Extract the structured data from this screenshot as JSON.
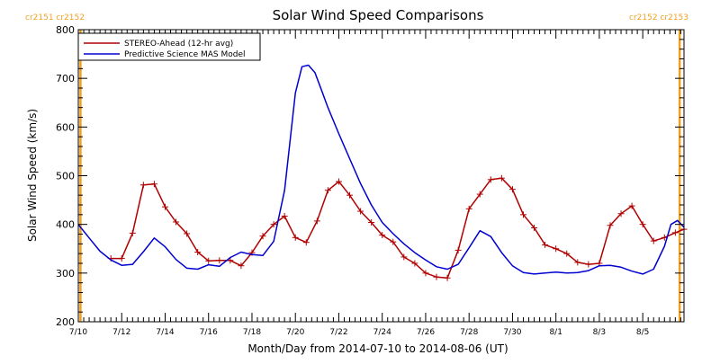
{
  "chart_data": {
    "type": "line",
    "title": "Solar Wind Speed Comparisons",
    "xlabel": "Month/Day from 2014-07-10 to 2014-08-06 (UT)",
    "ylabel": "Solar Wind Speed (km/s)",
    "x_units": "days since 2014-07-10 00:00 UT",
    "xlim": [
      0,
      27.9
    ],
    "ylim": [
      200,
      800
    ],
    "y_ticks": [
      200,
      300,
      400,
      500,
      600,
      700,
      800
    ],
    "x_ticks": [
      {
        "x": 0,
        "label": "7/10"
      },
      {
        "x": 2,
        "label": "7/12"
      },
      {
        "x": 4,
        "label": "7/14"
      },
      {
        "x": 6,
        "label": "7/16"
      },
      {
        "x": 8,
        "label": "7/18"
      },
      {
        "x": 10,
        "label": "7/20"
      },
      {
        "x": 12,
        "label": "7/22"
      },
      {
        "x": 14,
        "label": "7/24"
      },
      {
        "x": 16,
        "label": "7/26"
      },
      {
        "x": 18,
        "label": "7/28"
      },
      {
        "x": 20,
        "label": "7/30"
      },
      {
        "x": 22,
        "label": "8/1"
      },
      {
        "x": 24,
        "label": "8/3"
      },
      {
        "x": 26,
        "label": "8/5"
      }
    ],
    "legend_placement": "top-left",
    "rotation_markers": [
      {
        "x": 0.1,
        "labels": [
          "cr2151",
          "cr2152"
        ],
        "color": "#f2a020"
      },
      {
        "x": 27.7,
        "labels": [
          "cr2152",
          "cr2153"
        ],
        "color": "#f2a020"
      }
    ],
    "series": [
      {
        "name": "STEREO-Ahead (12-hr avg)",
        "color": "#b00000",
        "marker": "plus",
        "x": [
          1.5,
          2.0,
          2.5,
          3.0,
          3.5,
          4.0,
          4.5,
          5.0,
          5.5,
          6.0,
          6.5,
          7.0,
          7.5,
          8.0,
          8.5,
          9.0,
          9.5,
          10.0,
          10.5,
          11.0,
          11.5,
          12.0,
          12.5,
          13.0,
          13.5,
          14.0,
          14.5,
          15.0,
          15.5,
          16.0,
          16.5,
          17.0,
          17.5,
          18.0,
          18.5,
          19.0,
          19.5,
          20.0,
          20.5,
          21.0,
          21.5,
          22.0,
          22.5,
          23.0,
          23.5,
          24.0,
          24.5,
          25.0,
          25.5,
          26.0,
          26.5,
          27.0,
          27.5,
          27.9
        ],
        "y": [
          330,
          330,
          382,
          481,
          483,
          436,
          405,
          381,
          343,
          325,
          326,
          326,
          315,
          342,
          376,
          400,
          417,
          373,
          363,
          407,
          470,
          488,
          460,
          427,
          404,
          378,
          364,
          333,
          320,
          300,
          292,
          290,
          347,
          432,
          462,
          492,
          495,
          472,
          420,
          393,
          358,
          350,
          340,
          322,
          318,
          320,
          398,
          422,
          438,
          400,
          366,
          373,
          383,
          390
        ]
      },
      {
        "name": "Predictive Science MAS Model",
        "color": "#0000d0",
        "marker": "none",
        "x": [
          0.0,
          0.5,
          1.0,
          1.5,
          2.0,
          2.5,
          3.0,
          3.5,
          4.0,
          4.5,
          5.0,
          5.5,
          6.0,
          6.5,
          7.0,
          7.5,
          8.0,
          8.5,
          9.0,
          9.5,
          10.0,
          10.3,
          10.6,
          10.9,
          11.2,
          11.5,
          12.0,
          12.5,
          13.0,
          13.5,
          14.0,
          14.5,
          15.0,
          15.5,
          16.0,
          16.5,
          17.0,
          17.5,
          18.0,
          18.5,
          19.0,
          19.5,
          20.0,
          20.5,
          21.0,
          21.5,
          22.0,
          22.5,
          23.0,
          23.5,
          24.0,
          24.5,
          25.0,
          25.5,
          26.0,
          26.5,
          27.0,
          27.3,
          27.6,
          27.9
        ],
        "y": [
          400,
          372,
          345,
          327,
          316,
          318,
          344,
          372,
          354,
          328,
          310,
          308,
          317,
          314,
          332,
          343,
          338,
          336,
          365,
          470,
          670,
          724,
          727,
          712,
          676,
          640,
          586,
          535,
          484,
          440,
          404,
          381,
          360,
          342,
          327,
          313,
          308,
          318,
          352,
          387,
          375,
          342,
          315,
          301,
          298,
          300,
          302,
          300,
          301,
          305,
          315,
          316,
          312,
          304,
          298,
          308,
          355,
          400,
          408,
          394
        ]
      }
    ]
  }
}
